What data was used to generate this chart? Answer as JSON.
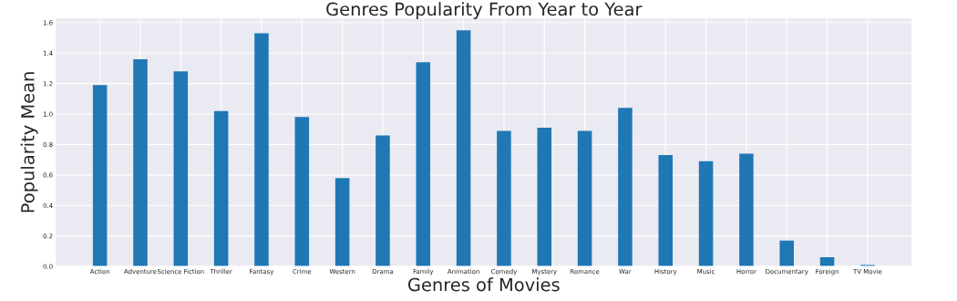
{
  "chart_data": {
    "type": "bar",
    "title": "Genres Popularity From Year to Year",
    "xlabel": "Genres of Movies",
    "ylabel": "Popularity Mean",
    "categories": [
      "Action",
      "Adventure",
      "Science Fiction",
      "Thriller",
      "Fantasy",
      "Crime",
      "Western",
      "Drama",
      "Family",
      "Animation",
      "Comedy",
      "Mystery",
      "Romance",
      "War",
      "History",
      "Music",
      "Horror",
      "Documentary",
      "Foreign",
      "TV Movie"
    ],
    "values": [
      1.19,
      1.36,
      1.28,
      1.02,
      1.53,
      0.98,
      0.58,
      0.86,
      1.34,
      1.55,
      0.89,
      0.91,
      0.89,
      1.04,
      0.73,
      0.69,
      0.74,
      0.17,
      0.06,
      0.01
    ],
    "color": "#1f77b4",
    "ylim": [
      0,
      1.63
    ],
    "yticks": [
      {
        "value": 0,
        "label": "0.0"
      },
      {
        "value": 0.2,
        "label": "0.2"
      },
      {
        "value": 0.4,
        "label": "0.4"
      },
      {
        "value": 0.6,
        "label": "0.6"
      },
      {
        "value": 0.8,
        "label": "0.8"
      },
      {
        "value": 1.0,
        "label": "1.0"
      },
      {
        "value": 1.2,
        "label": "1.2"
      },
      {
        "value": 1.4,
        "label": "1.4"
      },
      {
        "value": 1.6,
        "label": "1.6"
      }
    ],
    "grid": true
  }
}
